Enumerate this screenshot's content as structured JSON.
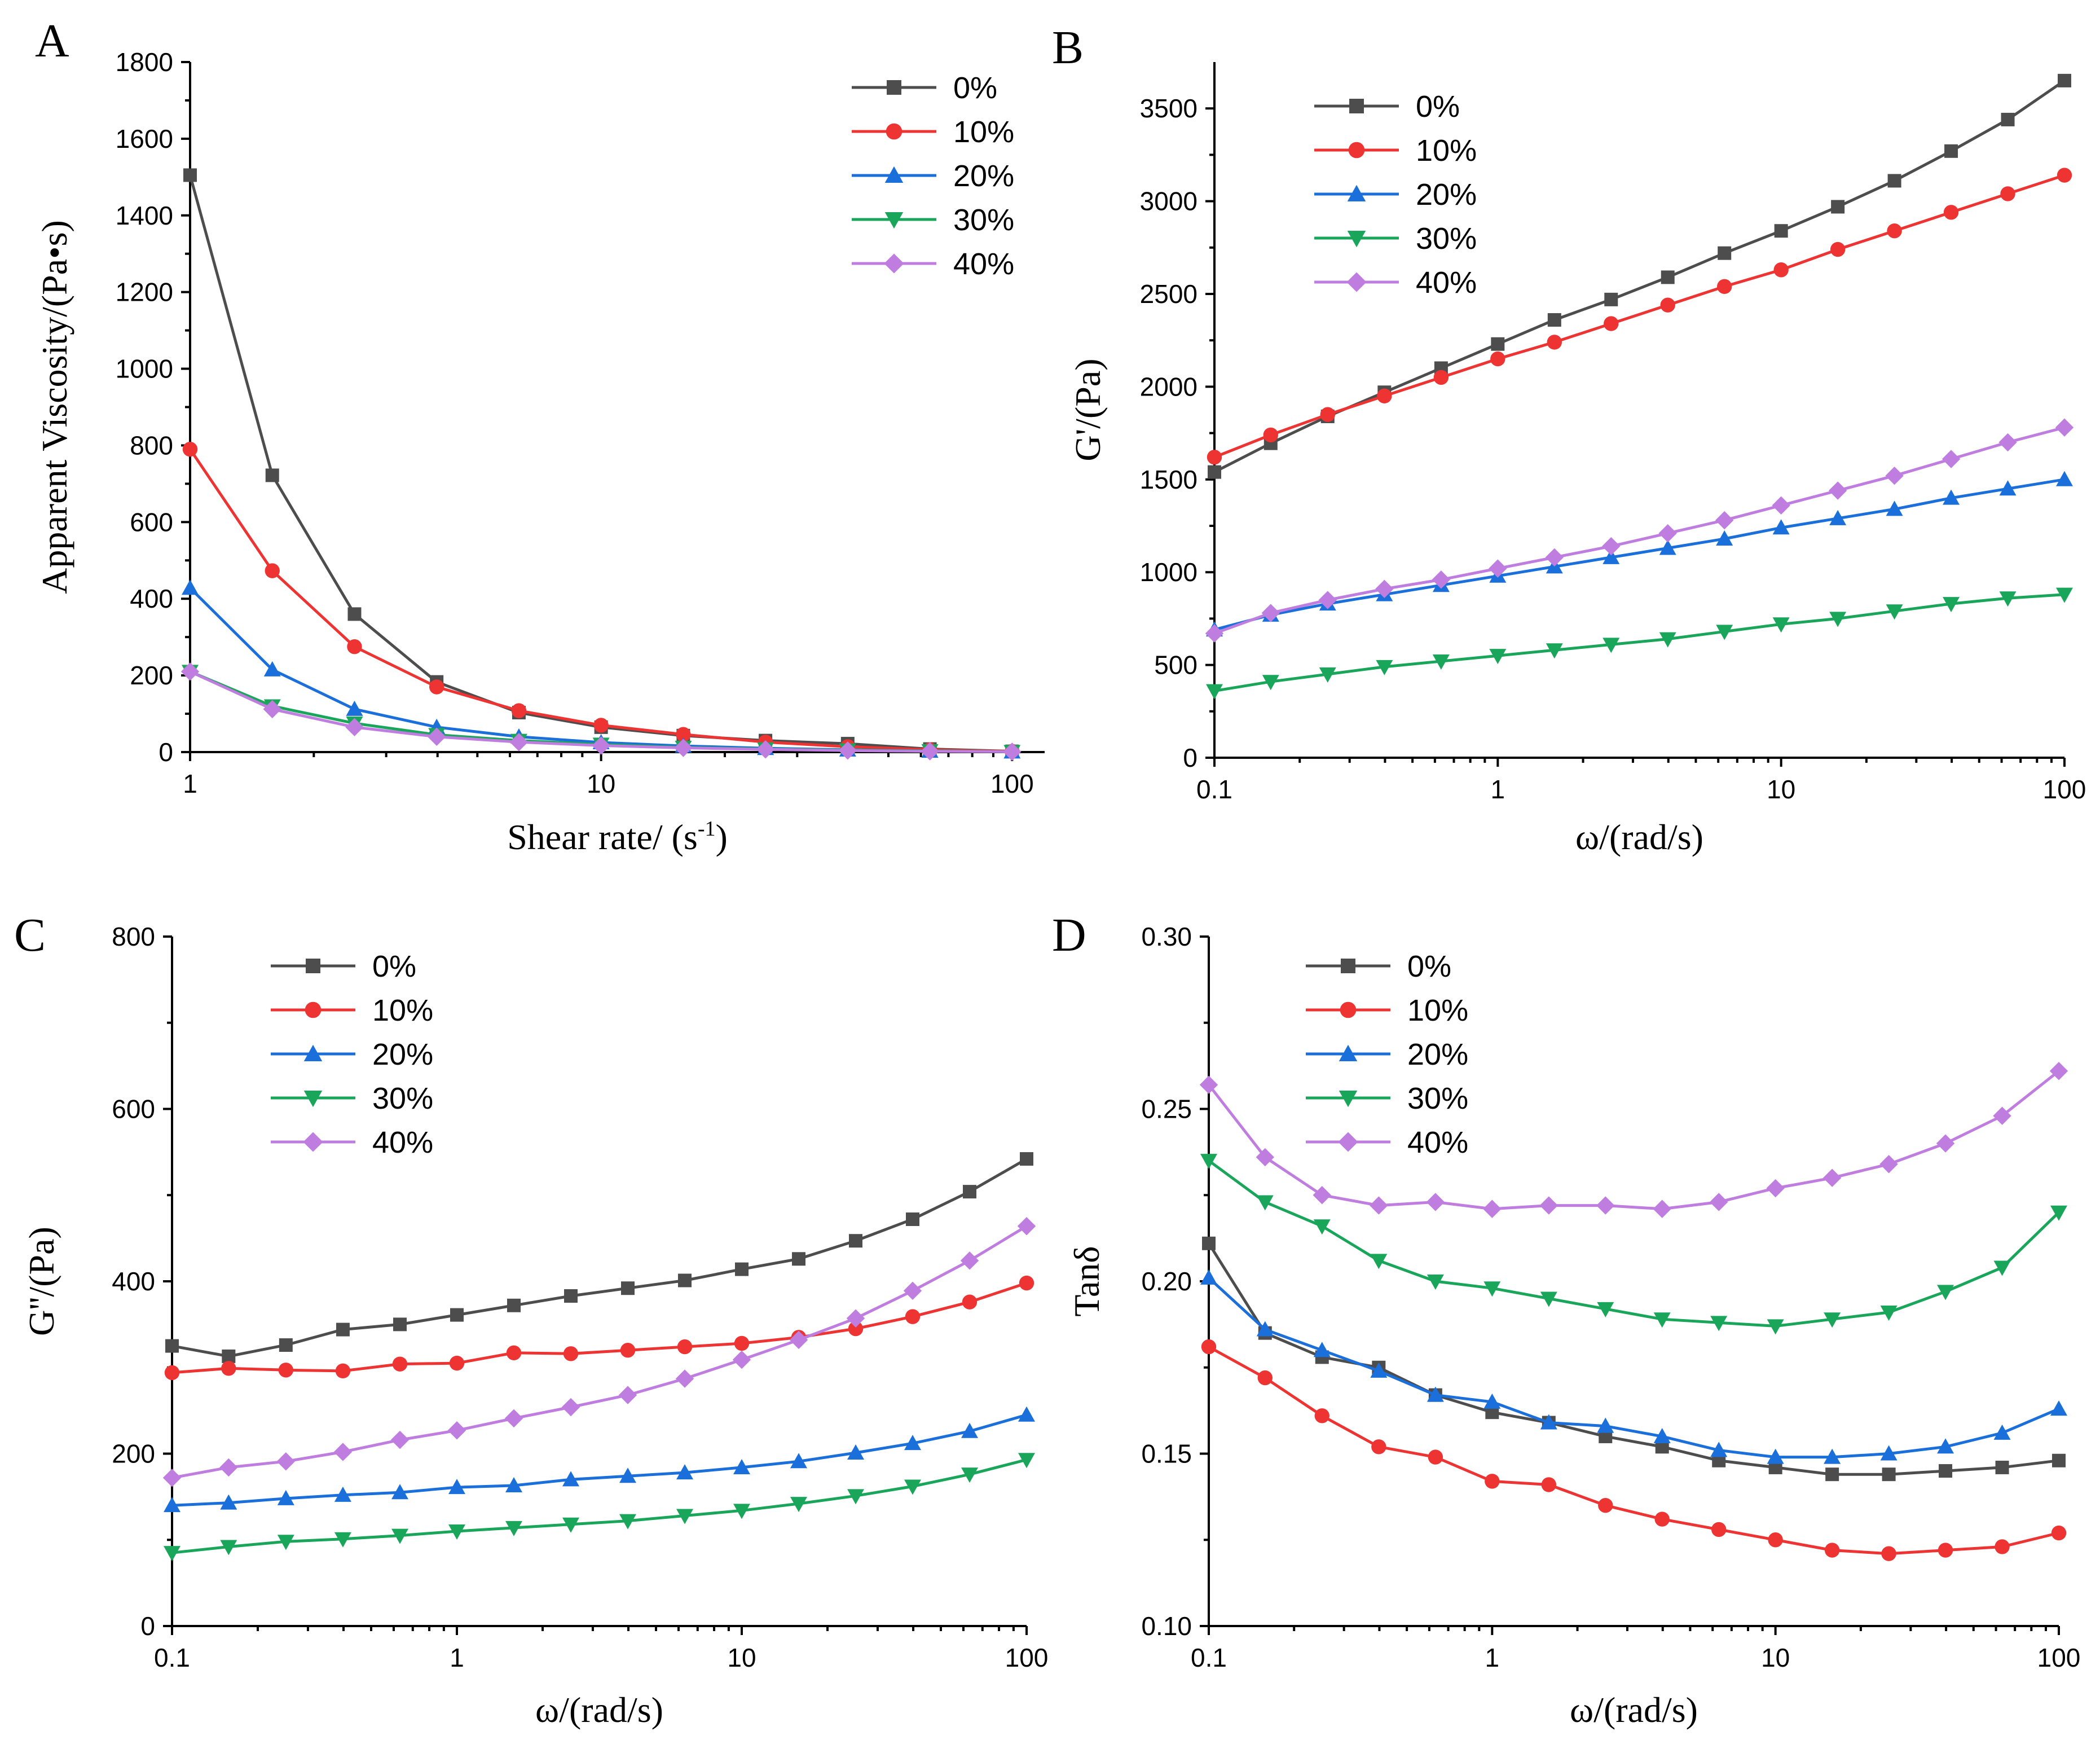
{
  "figure": {
    "series_names": [
      "0%",
      "10%",
      "20%",
      "30%",
      "40%"
    ],
    "series_colors": [
      "#4d4d4d",
      "#ee3333",
      "#1a6fdb",
      "#1aa65a",
      "#c07de0"
    ],
    "series_markers": [
      "square",
      "circle",
      "triangle-up",
      "triangle-down",
      "diamond"
    ]
  },
  "chart_data": [
    {
      "panel": "A",
      "type": "line",
      "xscale": "log",
      "xlabel": "Shear rate/ (s",
      "xlabel_sup": "-1",
      "xlabel_close": ")",
      "ylabel": "Apparent Viscosity/(Pa•s)",
      "xlim": [
        1,
        120
      ],
      "ylim": [
        0,
        1800
      ],
      "xticks": [
        1,
        10,
        100
      ],
      "xtick_labels": [
        "1",
        "10",
        "100"
      ],
      "yticks": [
        0,
        200,
        400,
        600,
        800,
        1000,
        1200,
        1400,
        1600,
        1800
      ],
      "ytick_labels": [
        "0",
        "200",
        "400",
        "600",
        "800",
        "1000",
        "1200",
        "1400",
        "1600",
        "1800"
      ],
      "legend_position": "top-right",
      "x": [
        1,
        1.585,
        2.512,
        3.981,
        6.31,
        10,
        15.85,
        25.12,
        39.81,
        63.1,
        100
      ],
      "series": [
        {
          "name": "0%",
          "values": [
            1505,
            722,
            360,
            183,
            103,
            65,
            43,
            30,
            22,
            8,
            2
          ]
        },
        {
          "name": "10%",
          "values": [
            790,
            473,
            275,
            170,
            108,
            70,
            46,
            26,
            14,
            6,
            2
          ]
        },
        {
          "name": "20%",
          "values": [
            428,
            215,
            112,
            65,
            40,
            25,
            16,
            10,
            6,
            3,
            1
          ]
        },
        {
          "name": "30%",
          "values": [
            210,
            120,
            75,
            45,
            30,
            20,
            12,
            8,
            5,
            3,
            1
          ]
        },
        {
          "name": "40%",
          "values": [
            210,
            112,
            65,
            40,
            26,
            17,
            11,
            7,
            4,
            2,
            1
          ]
        }
      ]
    },
    {
      "panel": "B",
      "type": "line",
      "xscale": "log",
      "xlabel": "ω/(rad/s)",
      "ylabel": "G'/(Pa)",
      "xlim": [
        0.1,
        100
      ],
      "ylim": [
        0,
        3750
      ],
      "xticks": [
        0.1,
        1,
        10,
        100
      ],
      "xtick_labels": [
        "0.1",
        "1",
        "10",
        "100"
      ],
      "yticks": [
        0,
        500,
        1000,
        1500,
        2000,
        2500,
        3000,
        3500
      ],
      "ytick_labels": [
        "0",
        "500",
        "1000",
        "1500",
        "2000",
        "2500",
        "3000",
        "3500"
      ],
      "legend_position": "top-left",
      "x": [
        0.1,
        0.158,
        0.251,
        0.398,
        0.631,
        1,
        1.585,
        2.512,
        3.981,
        6.31,
        10,
        15.85,
        25.12,
        39.81,
        63.1,
        100
      ],
      "series": [
        {
          "name": "0%",
          "values": [
            1540,
            1695,
            1840,
            1970,
            2100,
            2230,
            2360,
            2470,
            2590,
            2720,
            2840,
            2970,
            3110,
            3270,
            3440,
            3650
          ]
        },
        {
          "name": "10%",
          "values": [
            1620,
            1740,
            1850,
            1950,
            2050,
            2150,
            2240,
            2340,
            2440,
            2540,
            2630,
            2740,
            2840,
            2940,
            3040,
            3140
          ]
        },
        {
          "name": "20%",
          "values": [
            690,
            770,
            830,
            880,
            930,
            980,
            1030,
            1080,
            1130,
            1180,
            1240,
            1290,
            1340,
            1400,
            1450,
            1500
          ]
        },
        {
          "name": "30%",
          "values": [
            360,
            410,
            450,
            490,
            520,
            550,
            580,
            610,
            640,
            680,
            720,
            750,
            790,
            830,
            860,
            880
          ]
        },
        {
          "name": "40%",
          "values": [
            670,
            780,
            850,
            910,
            960,
            1020,
            1080,
            1140,
            1210,
            1280,
            1360,
            1440,
            1520,
            1610,
            1700,
            1780
          ]
        }
      ]
    },
    {
      "panel": "C",
      "type": "line",
      "xscale": "log",
      "xlabel": "ω/(rad/s)",
      "ylabel": "G''/(Pa)",
      "xlim": [
        0.1,
        100
      ],
      "ylim": [
        0,
        800
      ],
      "xticks": [
        0.1,
        1,
        10,
        100
      ],
      "xtick_labels": [
        "0.1",
        "1",
        "10",
        "100"
      ],
      "yticks": [
        0,
        200,
        400,
        600,
        800
      ],
      "ytick_labels": [
        "0",
        "200",
        "400",
        "600",
        "800"
      ],
      "legend_position": "top-left",
      "x": [
        0.1,
        0.158,
        0.251,
        0.398,
        0.631,
        1,
        1.585,
        2.512,
        3.981,
        6.31,
        10,
        15.85,
        25.12,
        39.81,
        63.1,
        100
      ],
      "series": [
        {
          "name": "0%",
          "values": [
            325,
            313,
            326,
            344,
            350,
            361,
            372,
            383,
            392,
            401,
            414,
            426,
            447,
            472,
            504,
            542
          ]
        },
        {
          "name": "10%",
          "values": [
            294,
            299,
            297,
            296,
            304,
            305,
            317,
            316,
            320,
            324,
            328,
            335,
            345,
            359,
            376,
            398
          ]
        },
        {
          "name": "20%",
          "values": [
            140,
            143,
            148,
            152,
            155,
            161,
            163,
            170,
            174,
            178,
            184,
            191,
            201,
            212,
            226,
            245
          ]
        },
        {
          "name": "30%",
          "values": [
            85,
            92,
            98,
            101,
            105,
            110,
            114,
            118,
            122,
            128,
            134,
            142,
            151,
            162,
            176,
            193
          ]
        },
        {
          "name": "40%",
          "values": [
            172,
            184,
            191,
            202,
            216,
            227,
            241,
            254,
            268,
            287,
            309,
            332,
            357,
            389,
            424,
            464
          ]
        }
      ]
    },
    {
      "panel": "D",
      "type": "line",
      "xscale": "log",
      "xlabel": "ω/(rad/s)",
      "ylabel": "Tanδ",
      "xlim": [
        0.1,
        100
      ],
      "ylim": [
        0.1,
        0.3
      ],
      "xticks": [
        0.1,
        1,
        10,
        100
      ],
      "xtick_labels": [
        "0.1",
        "1",
        "10",
        "100"
      ],
      "yticks": [
        0.1,
        0.15,
        0.2,
        0.25,
        0.3
      ],
      "ytick_labels": [
        "0.10",
        "0.15",
        "0.20",
        "0.25",
        "0.30"
      ],
      "legend_position": "top-left",
      "x": [
        0.1,
        0.158,
        0.251,
        0.398,
        0.631,
        1,
        1.585,
        2.512,
        3.981,
        6.31,
        10,
        15.85,
        25.12,
        39.81,
        63.1,
        100
      ],
      "series": [
        {
          "name": "0%",
          "values": [
            0.211,
            0.185,
            0.178,
            0.175,
            0.167,
            0.162,
            0.159,
            0.155,
            0.152,
            0.148,
            0.146,
            0.144,
            0.144,
            0.145,
            0.146,
            0.148
          ]
        },
        {
          "name": "10%",
          "values": [
            0.181,
            0.172,
            0.161,
            0.152,
            0.149,
            0.142,
            0.141,
            0.135,
            0.131,
            0.128,
            0.125,
            0.122,
            0.121,
            0.122,
            0.123,
            0.127
          ]
        },
        {
          "name": "20%",
          "values": [
            0.201,
            0.186,
            0.18,
            0.174,
            0.167,
            0.165,
            0.159,
            0.158,
            0.155,
            0.151,
            0.149,
            0.149,
            0.15,
            0.152,
            0.156,
            0.163
          ]
        },
        {
          "name": "30%",
          "values": [
            0.235,
            0.223,
            0.216,
            0.206,
            0.2,
            0.198,
            0.195,
            0.192,
            0.189,
            0.188,
            0.187,
            0.189,
            0.191,
            0.197,
            0.204,
            0.22
          ]
        },
        {
          "name": "40%",
          "values": [
            0.257,
            0.236,
            0.225,
            0.222,
            0.223,
            0.221,
            0.222,
            0.222,
            0.221,
            0.223,
            0.227,
            0.23,
            0.234,
            0.24,
            0.248,
            0.261
          ]
        }
      ]
    }
  ]
}
